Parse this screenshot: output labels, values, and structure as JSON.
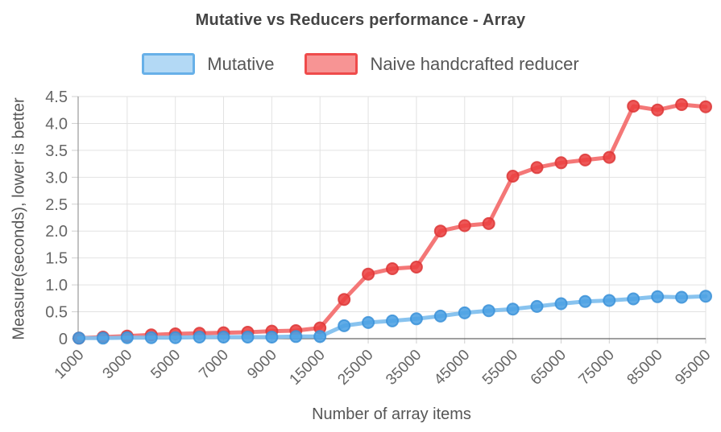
{
  "colors": {
    "background": "#ffffff",
    "title_text": "#444444",
    "axis_text": "#666666",
    "axis_title_text": "#565656",
    "grid_line": "#e2e2e2",
    "x_axis_line": "#666666",
    "y_axis_line": "#9a9a9a",
    "tick_mark": "#cfcfcf"
  },
  "chart_data": {
    "type": "line",
    "title": "Mutative vs Reducers performance - Array",
    "xlabel": "Number of array items",
    "ylabel": "Measure(seconds), lower is better",
    "ylim": [
      0,
      4.5
    ],
    "grid": true,
    "legend_position": "top",
    "x": [
      1000,
      2000,
      3000,
      4000,
      5000,
      6000,
      7000,
      8000,
      9000,
      10000,
      15000,
      20000,
      25000,
      30000,
      35000,
      40000,
      45000,
      50000,
      55000,
      60000,
      65000,
      70000,
      75000,
      80000,
      85000,
      90000,
      95000
    ],
    "x_tick_labels": [
      "1000",
      "3000",
      "5000",
      "7000",
      "9000",
      "15000",
      "25000",
      "35000",
      "45000",
      "55000",
      "65000",
      "75000",
      "85000",
      "95000"
    ],
    "y_ticks": [
      0,
      0.5,
      1,
      1.5,
      2,
      2.5,
      3,
      3.5,
      4,
      4.5
    ],
    "y_tick_labels": [
      "0",
      "0.5",
      "1.0",
      "1.5",
      "2.0",
      "2.5",
      "3.0",
      "3.5",
      "4.0",
      "4.5"
    ],
    "series": [
      {
        "name": "Mutative",
        "line_color": "#82c0ee",
        "marker_color": "#4ba1e4",
        "marker_stroke": "#3c92d8",
        "legend_fill": "#b3d9f5",
        "legend_border": "#67b0e8",
        "values": [
          0.01,
          0.01,
          0.02,
          0.02,
          0.02,
          0.03,
          0.03,
          0.03,
          0.03,
          0.04,
          0.04,
          0.24,
          0.3,
          0.33,
          0.37,
          0.42,
          0.48,
          0.52,
          0.55,
          0.6,
          0.65,
          0.69,
          0.71,
          0.74,
          0.78,
          0.77,
          0.79
        ]
      },
      {
        "name": "Naive handcrafted reducer",
        "line_color": "#f37070",
        "marker_color": "#ec4141",
        "marker_stroke": "#dc3838",
        "legend_fill": "#f79494",
        "legend_border": "#ef4b4b",
        "values": [
          0.01,
          0.03,
          0.05,
          0.07,
          0.09,
          0.1,
          0.11,
          0.12,
          0.14,
          0.15,
          0.2,
          0.73,
          1.2,
          1.3,
          1.33,
          2.0,
          2.1,
          2.14,
          3.02,
          3.18,
          3.27,
          3.32,
          3.37,
          4.32,
          4.25,
          4.35,
          4.31
        ]
      }
    ]
  }
}
